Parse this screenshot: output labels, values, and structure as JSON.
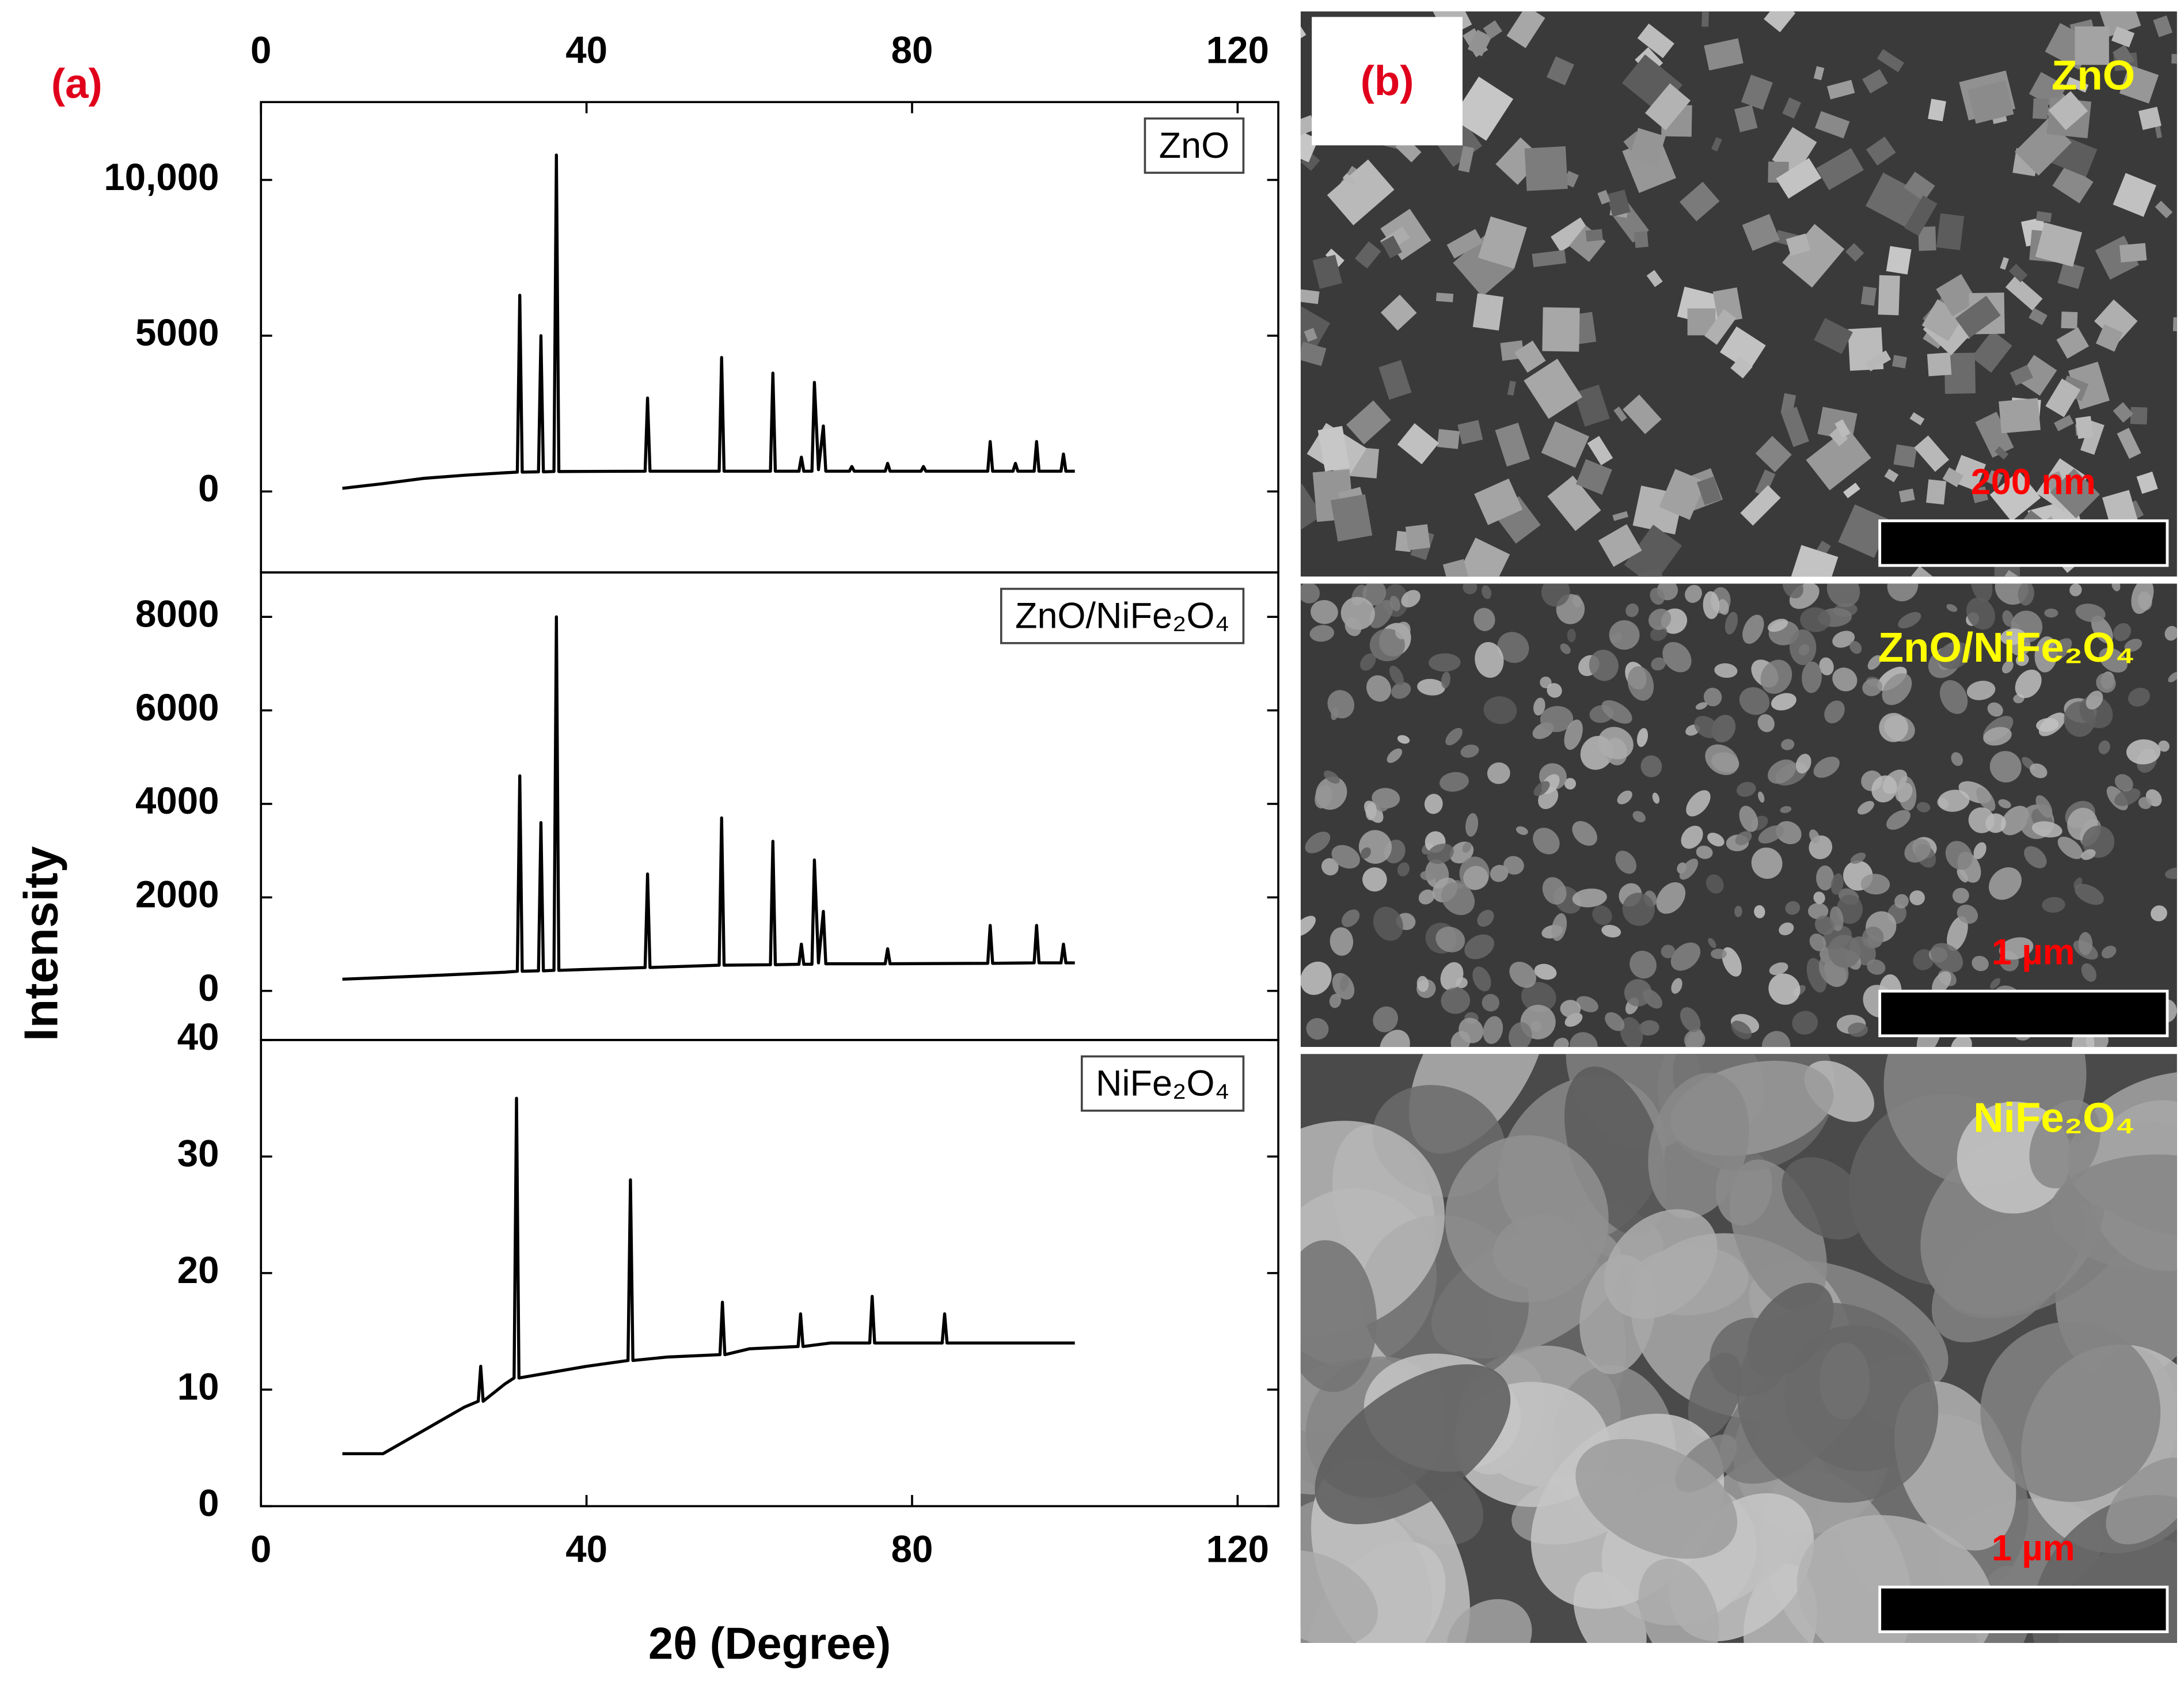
{
  "chart_data": [
    {
      "type": "line",
      "xlim": [
        0,
        125
      ],
      "xticks": [
        0,
        40,
        80,
        120
      ],
      "ylim": [
        -2600,
        12500
      ],
      "yticks": [
        0,
        5000,
        {
          "value": 10000,
          "label": "10,000"
        }
      ],
      "x": [
        10,
        15,
        20,
        25,
        30,
        31.5,
        31.8,
        32.1,
        34.1,
        34.4,
        34.7,
        36.0,
        36.3,
        36.6,
        47.2,
        47.5,
        47.8,
        56.3,
        56.6,
        56.9,
        62.6,
        62.9,
        63.2,
        66.1,
        66.4,
        66.7,
        67.7,
        68.0,
        68.5,
        69.1,
        69.4,
        72.3,
        72.6,
        72.9,
        76.7,
        77.0,
        77.3,
        81.1,
        81.4,
        81.7,
        89.3,
        89.6,
        89.9,
        92.4,
        92.7,
        93.0,
        95.0,
        95.3,
        95.6,
        98.3,
        98.6,
        98.9,
        100
      ],
      "series": [
        {
          "name": "ZnO",
          "color": "#000000",
          "values": [
            100,
            250,
            420,
            520,
            600,
            620,
            6300,
            620,
            630,
            5000,
            630,
            640,
            10800,
            640,
            650,
            3000,
            650,
            650,
            4300,
            650,
            650,
            3800,
            650,
            650,
            1100,
            650,
            650,
            3500,
            700,
            2100,
            650,
            650,
            800,
            650,
            650,
            900,
            650,
            650,
            800,
            650,
            650,
            1600,
            650,
            650,
            900,
            650,
            650,
            1600,
            650,
            650,
            1200,
            650,
            650
          ]
        }
      ]
    },
    {
      "type": "line",
      "xlim": [
        0,
        125
      ],
      "ylim": [
        -1050,
        8950
      ],
      "yticks": [
        0,
        2000,
        4000,
        6000,
        8000
      ],
      "ylabel": "Intensity",
      "x": [
        10,
        20,
        30,
        31.5,
        31.8,
        32.1,
        34.1,
        34.4,
        34.7,
        36.0,
        36.3,
        36.6,
        47.2,
        47.5,
        47.8,
        56.3,
        56.6,
        56.9,
        62.6,
        62.9,
        63.2,
        66.1,
        66.4,
        66.7,
        67.7,
        68.0,
        68.5,
        69.1,
        69.4,
        76.7,
        77.0,
        77.3,
        89.3,
        89.6,
        89.9,
        95.0,
        95.3,
        95.6,
        98.3,
        98.6,
        98.9,
        100
      ],
      "series": [
        {
          "name": "ZnO/NiFe₂O₄",
          "color": "#000000",
          "values": [
            250,
            320,
            400,
            420,
            4600,
            420,
            430,
            3600,
            430,
            440,
            8000,
            440,
            500,
            2500,
            500,
            550,
            3700,
            550,
            560,
            3200,
            560,
            570,
            1000,
            570,
            570,
            2800,
            600,
            1700,
            580,
            580,
            900,
            580,
            590,
            1400,
            590,
            600,
            1400,
            600,
            600,
            1000,
            600,
            600
          ]
        }
      ]
    },
    {
      "type": "line",
      "xlim": [
        0,
        125
      ],
      "xticks": [
        0,
        40,
        80,
        120
      ],
      "ylim": [
        0,
        40
      ],
      "yticks": [
        0,
        10,
        20,
        30,
        40
      ],
      "xlabel": "2θ (Degree)",
      "x": [
        10,
        15,
        20,
        25,
        26.7,
        27.0,
        27.3,
        30,
        31.1,
        31.4,
        31.7,
        40,
        45.1,
        45.4,
        45.7,
        50,
        56.4,
        56.7,
        57.0,
        60,
        66.0,
        66.3,
        66.6,
        70,
        74.8,
        75.1,
        75.4,
        83.7,
        84.0,
        84.3,
        90,
        100
      ],
      "series": [
        {
          "name": "NiFe₂O₄",
          "color": "#000000",
          "values": [
            4.5,
            4.5,
            6.5,
            8.5,
            9,
            12,
            9,
            10.5,
            11,
            35,
            11,
            12,
            12.5,
            28,
            12.5,
            12.8,
            13,
            17.5,
            13,
            13.5,
            13.7,
            16.5,
            13.7,
            14,
            14,
            18,
            14,
            14,
            16.5,
            14,
            14,
            14
          ]
        }
      ]
    }
  ],
  "panel_labels": {
    "a": "(a)",
    "b": "(b)"
  },
  "images": [
    {
      "label": "ZnO",
      "scale_bar": "200 nm"
    },
    {
      "label": "ZnO/NiFe₂O₄",
      "scale_bar": "1 µm"
    },
    {
      "label": "NiFe₂O₄",
      "scale_bar": "1 µm"
    }
  ]
}
